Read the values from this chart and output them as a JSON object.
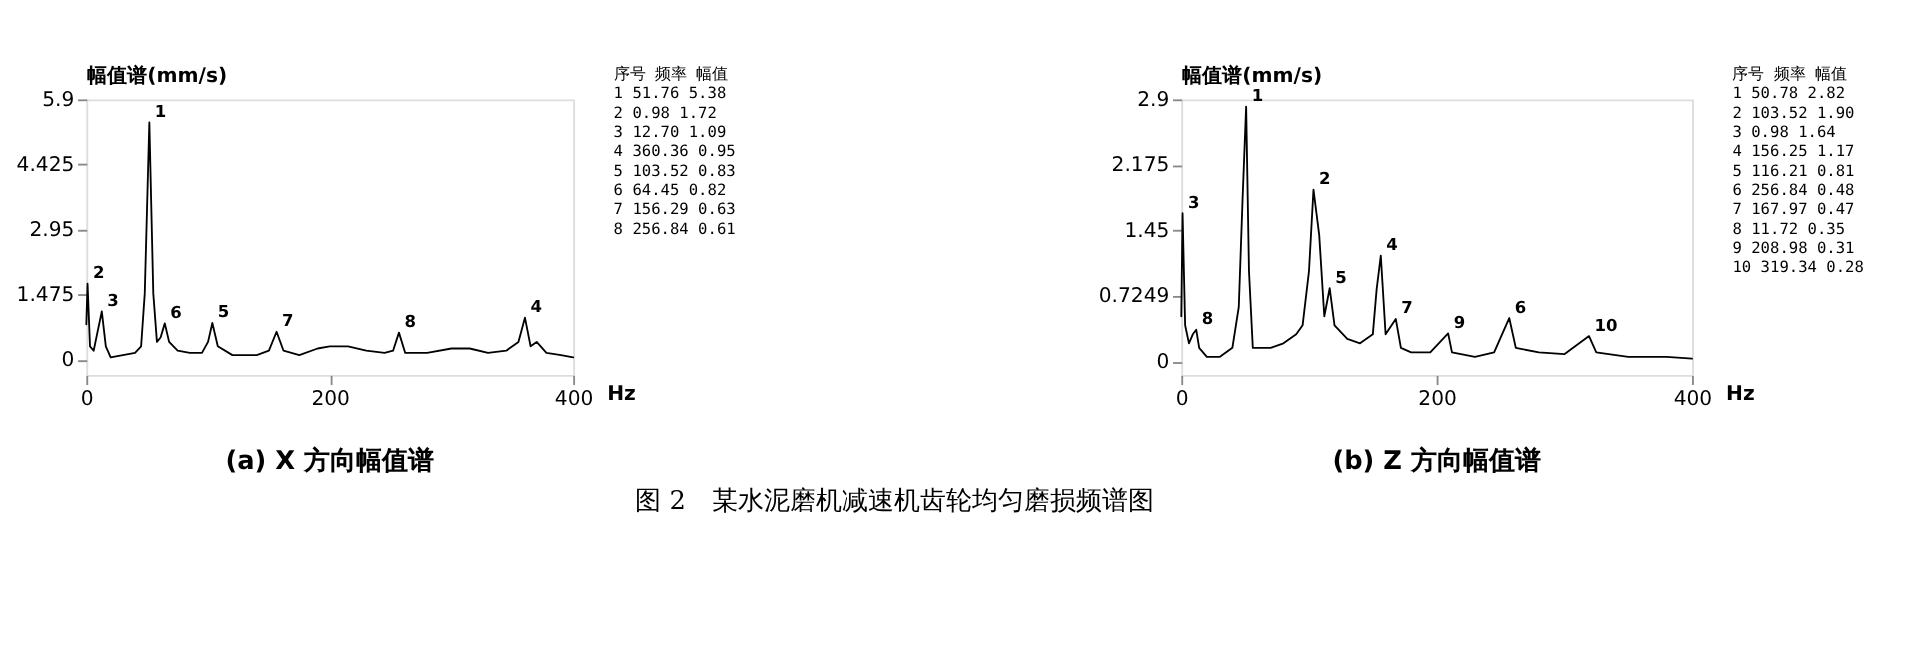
{
  "chart_data": [
    {
      "type": "line",
      "title": "(a)  X 方向幅值谱",
      "ylabel": "幅值谱(mm/s)",
      "xlabel": "Hz",
      "xlim": [
        0,
        400
      ],
      "xticks": [
        0,
        200,
        400
      ],
      "ylim": [
        -0.35,
        5.9
      ],
      "yticks": [
        0,
        1.475,
        2.95,
        4.425,
        5.9
      ],
      "grid": false,
      "marker": "none",
      "line_style": "solid",
      "series": [
        {
          "color": "#000000",
          "x": [
            0,
            0.98,
            3,
            6,
            9,
            12.7,
            16,
            20,
            30,
            40,
            45,
            48,
            51.76,
            55,
            58,
            61,
            64.45,
            68,
            75,
            85,
            95,
            100,
            103.52,
            108,
            120,
            140,
            150,
            156.29,
            162,
            175,
            190,
            200,
            215,
            230,
            245,
            252,
            256.84,
            262,
            280,
            300,
            315,
            330,
            345,
            355,
            360.36,
            365,
            370,
            378,
            390,
            400
          ],
          "values": [
            0.8,
            1.72,
            0.3,
            0.2,
            0.6,
            1.09,
            0.3,
            0.05,
            0.1,
            0.15,
            0.3,
            1.5,
            5.38,
            1.5,
            0.4,
            0.5,
            0.82,
            0.4,
            0.2,
            0.15,
            0.15,
            0.4,
            0.83,
            0.3,
            0.1,
            0.1,
            0.2,
            0.63,
            0.2,
            0.1,
            0.25,
            0.3,
            0.3,
            0.2,
            0.15,
            0.2,
            0.61,
            0.15,
            0.15,
            0.25,
            0.25,
            0.15,
            0.2,
            0.4,
            0.95,
            0.3,
            0.4,
            0.15,
            0.1,
            0.05
          ]
        }
      ],
      "annotations": [
        {
          "text": "1",
          "x": 51.76,
          "y": 5.38
        },
        {
          "text": "2",
          "x": 0.98,
          "y": 1.72
        },
        {
          "text": "3",
          "x": 12.7,
          "y": 1.09
        },
        {
          "text": "4",
          "x": 360.36,
          "y": 0.95
        },
        {
          "text": "5",
          "x": 103.52,
          "y": 0.83
        },
        {
          "text": "6",
          "x": 64.45,
          "y": 0.82
        },
        {
          "text": "7",
          "x": 156.29,
          "y": 0.63
        },
        {
          "text": "8",
          "x": 256.84,
          "y": 0.61
        },
        "序号   频率    幅值",
        "1     51.76   5.38",
        "2      0.98   1.72",
        "3     12.70   1.09",
        "4    360.36   0.95",
        "5    103.52   0.83",
        "6     64.45   0.82",
        "7    156.29   0.63",
        "8    256.84   0.61"
      ]
    },
    {
      "type": "line",
      "title": "(b)  Z 方向幅值谱",
      "ylabel": "幅值谱(mm/s)",
      "xlabel": "Hz",
      "xlim": [
        0,
        400
      ],
      "xticks": [
        0,
        200,
        400
      ],
      "ylim": [
        -0.15,
        2.9
      ],
      "yticks": [
        0,
        0.7249,
        1.45,
        2.175,
        2.9
      ],
      "grid": false,
      "marker": "none",
      "line_style": "solid",
      "series": [
        {
          "color": "#000000",
          "x": [
            0,
            0.98,
            3,
            6,
            9,
            11.72,
            14,
            20,
            30,
            40,
            45,
            48,
            50.78,
            53,
            56,
            70,
            80,
            90,
            95,
            100,
            103.52,
            108,
            112,
            116.21,
            120,
            130,
            140,
            150,
            153,
            156.25,
            160,
            167.97,
            172,
            180,
            195,
            208.98,
            212,
            230,
            245,
            256.84,
            262,
            280,
            300,
            319.34,
            325,
            350,
            380,
            400
          ],
          "values": [
            0.5,
            1.64,
            0.4,
            0.2,
            0.3,
            0.35,
            0.15,
            0.05,
            0.05,
            0.15,
            0.6,
            1.8,
            2.82,
            1.0,
            0.15,
            0.15,
            0.2,
            0.3,
            0.4,
            1.0,
            1.9,
            1.4,
            0.5,
            0.81,
            0.4,
            0.25,
            0.2,
            0.3,
            0.8,
            1.17,
            0.3,
            0.47,
            0.15,
            0.1,
            0.1,
            0.31,
            0.1,
            0.05,
            0.1,
            0.48,
            0.15,
            0.1,
            0.08,
            0.28,
            0.1,
            0.05,
            0.05,
            0.03
          ]
        }
      ],
      "annotations": [
        {
          "text": "1",
          "x": 50.78,
          "y": 2.82
        },
        {
          "text": "2",
          "x": 103.52,
          "y": 1.9
        },
        {
          "text": "3",
          "x": 0.98,
          "y": 1.64
        },
        {
          "text": "4",
          "x": 156.25,
          "y": 1.17
        },
        {
          "text": "5",
          "x": 116.21,
          "y": 0.81
        },
        {
          "text": "6",
          "x": 256.84,
          "y": 0.48
        },
        {
          "text": "7",
          "x": 167.97,
          "y": 0.47
        },
        {
          "text": "8",
          "x": 11.72,
          "y": 0.35
        },
        {
          "text": "9",
          "x": 208.98,
          "y": 0.31
        },
        {
          "text": "10",
          "x": 319.34,
          "y": 0.28
        },
        "序号   频率    幅值",
        "1     50.78   2.82",
        "2    103.52   1.90",
        "3      0.98   1.64",
        "4    156.25   1.17",
        "5    116.21   0.81",
        "6    256.84   0.48",
        "7    167.97   0.47",
        "8     11.72   0.35",
        "9    208.98   0.31",
        "10   319.34   0.28",
        "图 2　某水泥磨机减速机齿轮均匀磨损频谱图"
      ]
    }
  ]
}
